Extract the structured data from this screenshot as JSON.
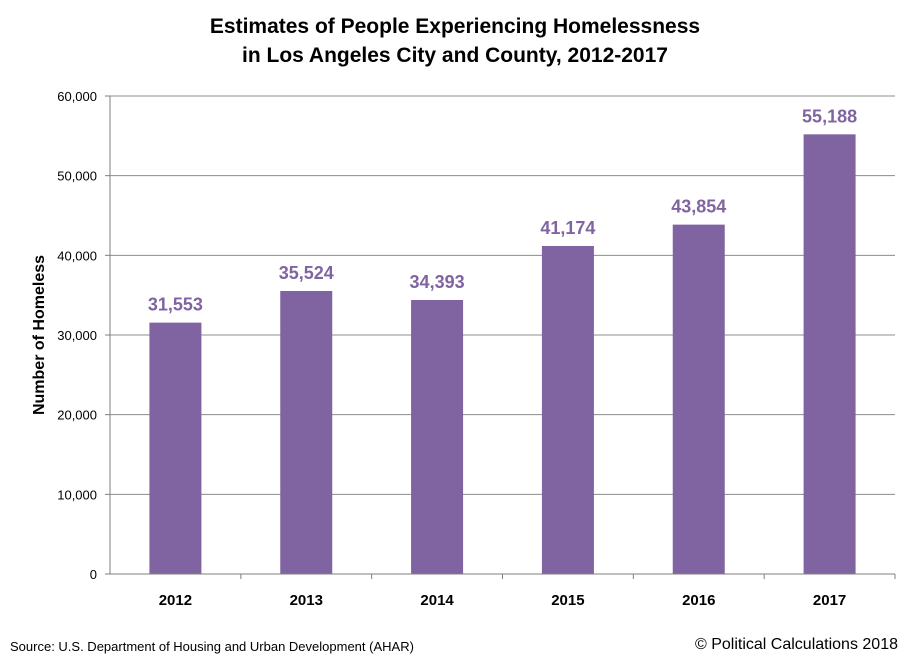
{
  "chart_data": {
    "type": "bar",
    "title": [
      "Estimates of People Experiencing Homelessness",
      "in Los Angeles City and County, 2012-2017"
    ],
    "categories": [
      "2012",
      "2013",
      "2014",
      "2015",
      "2016",
      "2017"
    ],
    "values": [
      31553,
      35524,
      34393,
      41174,
      43854,
      55188
    ],
    "data_labels": [
      "31,553",
      "35,524",
      "34,393",
      "41,174",
      "43,854",
      "55,188"
    ],
    "xlabel": "",
    "ylabel": "Number of Homeless",
    "ylim": [
      0,
      60000
    ],
    "yticks": [
      0,
      10000,
      20000,
      30000,
      40000,
      50000,
      60000
    ],
    "ytick_labels": [
      "0",
      "10,000",
      "20,000",
      "30,000",
      "40,000",
      "50,000",
      "60,000"
    ],
    "grid": true,
    "bar_color": "#8064a2",
    "label_color": "#8064a2"
  },
  "footer": {
    "source": "Source: U.S. Department of Housing and Urban Development (AHAR)",
    "copyright": "© Political Calculations 2018"
  }
}
